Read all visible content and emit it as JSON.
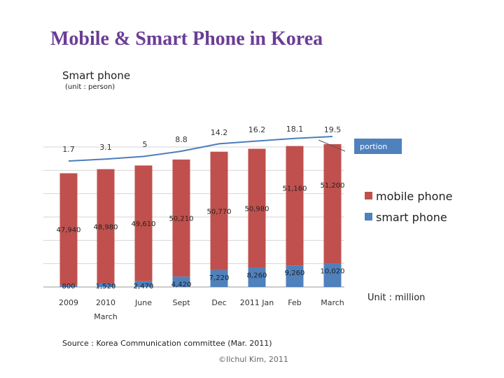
{
  "title": "Mobile & Smart Phone in Korea",
  "subtitle": "Smart phone",
  "unit_person": "(unit : person)",
  "unit_million": "Unit : million",
  "source": "Source : Korea Communication committee (Mar. 2011)",
  "copyright": "©Ilchul Kim, 2011",
  "colors": {
    "mobile": "#c0504d",
    "smart": "#4f81bd",
    "line": "#4a7ebb",
    "callout": "#4f81bd"
  },
  "chart_data": {
    "type": "bar",
    "stacked": true,
    "categories": [
      "2009",
      "2010",
      "June",
      "Sept",
      "Dec",
      "2011 Jan",
      "Feb",
      "March"
    ],
    "sub_label": "March",
    "series": [
      {
        "name": "mobile phone",
        "values": [
          47940,
          48980,
          49610,
          50210,
          50770,
          50980,
          51160,
          51200
        ],
        "labels": [
          "47,940",
          "48,980",
          "49,610",
          "50,210",
          "50,770",
          "50,980",
          "51,160",
          "51,200"
        ]
      },
      {
        "name": "smart phone",
        "values": [
          800,
          1520,
          2470,
          4420,
          7220,
          8260,
          9260,
          10020
        ],
        "labels": [
          "800",
          "1,520",
          "2,470",
          "4,420",
          "7,220",
          "8,260",
          "9,260",
          "10,020"
        ]
      }
    ],
    "line": {
      "name": "portion",
      "values": [
        1.7,
        3.1,
        5,
        8.8,
        14.2,
        16.2,
        18.1,
        19.5
      ],
      "labels": [
        "1.7",
        "3.1",
        "5",
        "8.8",
        "14.2",
        "16.2",
        "18.1",
        "19.5"
      ]
    },
    "legend": [
      "mobile phone",
      "smart phone"
    ],
    "callout": "portion",
    "ylim": [
      0,
      60000
    ],
    "grid": true
  }
}
